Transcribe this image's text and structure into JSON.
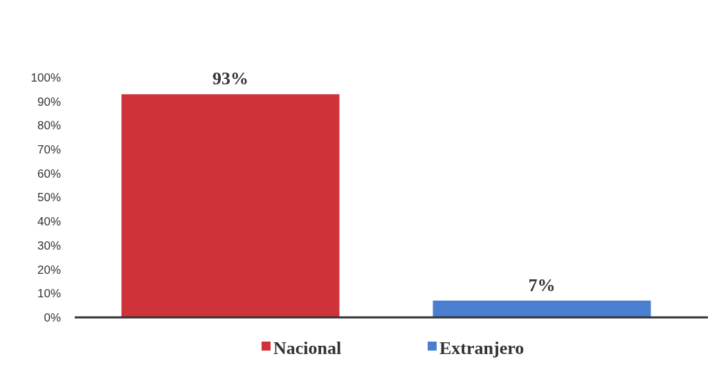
{
  "chart_data": {
    "type": "bar",
    "categories": [
      null,
      null
    ],
    "series": [
      {
        "name": "Nacional",
        "color": "#d0323a",
        "values": [
          93,
          null
        ]
      },
      {
        "name": "Extranjero",
        "color": "#4a7fd0",
        "values": [
          null,
          7
        ]
      }
    ],
    "ylim": [
      0,
      100
    ],
    "yticks": [
      {
        "value": 0,
        "label": "0%"
      },
      {
        "value": 10,
        "label": "10%"
      },
      {
        "value": 20,
        "label": "20%"
      },
      {
        "value": 30,
        "label": "30%"
      },
      {
        "value": 40,
        "label": "40%"
      },
      {
        "value": 50,
        "label": "50%"
      },
      {
        "value": 60,
        "label": "60%"
      },
      {
        "value": 70,
        "label": "70%"
      },
      {
        "value": 80,
        "label": "80%"
      },
      {
        "value": 90,
        "label": "90%"
      },
      {
        "value": 100,
        "label": "100%"
      }
    ],
    "value_labels": [
      "93%",
      "7%"
    ],
    "grid": false,
    "legend": "bottom"
  }
}
